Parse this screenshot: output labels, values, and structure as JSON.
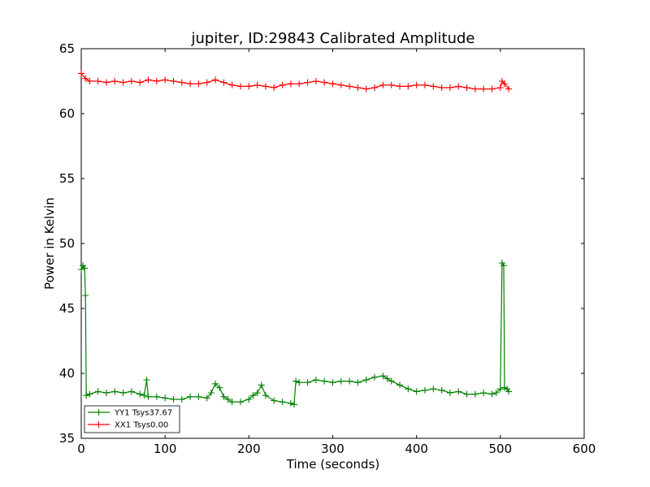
{
  "chart_data": {
    "type": "line",
    "title": "jupiter, ID:29843 Calibrated Amplitude",
    "xlabel": "Time (seconds)",
    "ylabel": "Power in Kelvin",
    "xlim": [
      0,
      600
    ],
    "ylim": [
      35,
      65
    ],
    "xticks": [
      0,
      100,
      200,
      300,
      400,
      500,
      600
    ],
    "yticks": [
      35,
      40,
      45,
      50,
      55,
      60,
      65
    ],
    "grid": false,
    "legend_position": "lower-left",
    "marker": "+",
    "series": [
      {
        "name": "YY1 Tsys37.67",
        "color": "#008000",
        "points": [
          [
            0,
            48.0
          ],
          [
            2,
            48.3
          ],
          [
            4,
            48.1
          ],
          [
            5,
            46.0
          ],
          [
            6,
            38.3
          ],
          [
            10,
            38.4
          ],
          [
            20,
            38.6
          ],
          [
            30,
            38.5
          ],
          [
            40,
            38.6
          ],
          [
            50,
            38.5
          ],
          [
            60,
            38.6
          ],
          [
            70,
            38.4
          ],
          [
            75,
            38.3
          ],
          [
            78,
            39.5
          ],
          [
            80,
            38.2
          ],
          [
            90,
            38.2
          ],
          [
            100,
            38.1
          ],
          [
            110,
            38.0
          ],
          [
            120,
            38.0
          ],
          [
            130,
            38.2
          ],
          [
            140,
            38.2
          ],
          [
            150,
            38.1
          ],
          [
            155,
            38.5
          ],
          [
            160,
            39.2
          ],
          [
            165,
            38.9
          ],
          [
            170,
            38.2
          ],
          [
            175,
            38.0
          ],
          [
            180,
            37.8
          ],
          [
            190,
            37.8
          ],
          [
            200,
            38.0
          ],
          [
            205,
            38.3
          ],
          [
            210,
            38.5
          ],
          [
            215,
            39.1
          ],
          [
            220,
            38.3
          ],
          [
            230,
            37.9
          ],
          [
            240,
            37.8
          ],
          [
            250,
            37.7
          ],
          [
            254,
            37.6
          ],
          [
            256,
            39.4
          ],
          [
            260,
            39.3
          ],
          [
            270,
            39.3
          ],
          [
            280,
            39.5
          ],
          [
            290,
            39.4
          ],
          [
            300,
            39.3
          ],
          [
            310,
            39.4
          ],
          [
            320,
            39.4
          ],
          [
            330,
            39.3
          ],
          [
            340,
            39.5
          ],
          [
            350,
            39.7
          ],
          [
            360,
            39.8
          ],
          [
            365,
            39.6
          ],
          [
            370,
            39.4
          ],
          [
            380,
            39.1
          ],
          [
            390,
            38.8
          ],
          [
            400,
            38.6
          ],
          [
            410,
            38.7
          ],
          [
            420,
            38.8
          ],
          [
            430,
            38.7
          ],
          [
            440,
            38.5
          ],
          [
            450,
            38.6
          ],
          [
            460,
            38.4
          ],
          [
            470,
            38.4
          ],
          [
            480,
            38.5
          ],
          [
            490,
            38.4
          ],
          [
            495,
            38.5
          ],
          [
            500,
            38.8
          ],
          [
            502,
            48.5
          ],
          [
            504,
            48.3
          ],
          [
            505,
            38.9
          ],
          [
            508,
            38.8
          ],
          [
            510,
            38.6
          ]
        ]
      },
      {
        "name": "XX1 Tsys0.00",
        "color": "#ff0000",
        "points": [
          [
            0,
            63.1
          ],
          [
            5,
            62.7
          ],
          [
            10,
            62.5
          ],
          [
            20,
            62.5
          ],
          [
            30,
            62.4
          ],
          [
            40,
            62.5
          ],
          [
            50,
            62.4
          ],
          [
            60,
            62.5
          ],
          [
            70,
            62.4
          ],
          [
            80,
            62.6
          ],
          [
            90,
            62.5
          ],
          [
            100,
            62.6
          ],
          [
            110,
            62.5
          ],
          [
            120,
            62.4
          ],
          [
            130,
            62.3
          ],
          [
            140,
            62.3
          ],
          [
            150,
            62.4
          ],
          [
            160,
            62.6
          ],
          [
            170,
            62.4
          ],
          [
            180,
            62.2
          ],
          [
            190,
            62.1
          ],
          [
            200,
            62.1
          ],
          [
            210,
            62.2
          ],
          [
            220,
            62.1
          ],
          [
            230,
            62.0
          ],
          [
            240,
            62.2
          ],
          [
            250,
            62.3
          ],
          [
            260,
            62.3
          ],
          [
            270,
            62.4
          ],
          [
            280,
            62.5
          ],
          [
            290,
            62.4
          ],
          [
            300,
            62.3
          ],
          [
            310,
            62.2
          ],
          [
            320,
            62.1
          ],
          [
            330,
            62.0
          ],
          [
            340,
            61.9
          ],
          [
            350,
            62.0
          ],
          [
            360,
            62.2
          ],
          [
            370,
            62.2
          ],
          [
            380,
            62.1
          ],
          [
            390,
            62.1
          ],
          [
            400,
            62.2
          ],
          [
            410,
            62.2
          ],
          [
            420,
            62.1
          ],
          [
            430,
            62.0
          ],
          [
            440,
            62.0
          ],
          [
            450,
            62.1
          ],
          [
            460,
            62.0
          ],
          [
            470,
            61.9
          ],
          [
            480,
            61.9
          ],
          [
            490,
            61.9
          ],
          [
            500,
            62.0
          ],
          [
            502,
            62.5
          ],
          [
            505,
            62.3
          ],
          [
            510,
            61.9
          ]
        ]
      }
    ]
  }
}
